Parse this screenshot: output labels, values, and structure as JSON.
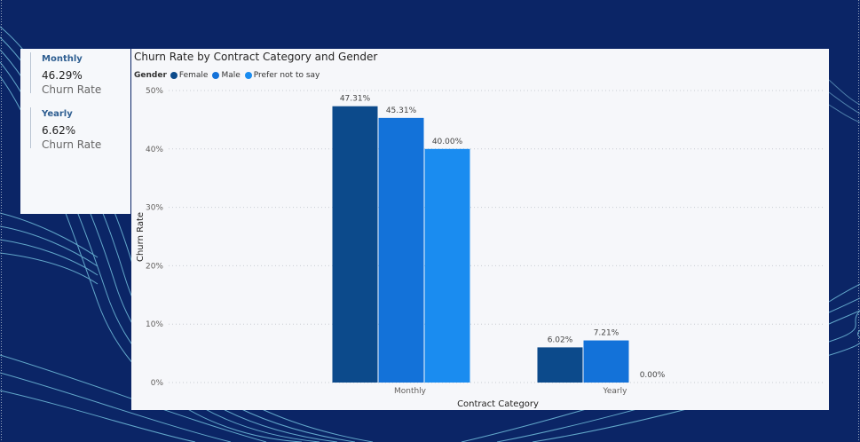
{
  "kpis": [
    {
      "title": "Monthly",
      "value": "46.29%",
      "subtitle": "Churn Rate"
    },
    {
      "title": "Yearly",
      "value": "6.62%",
      "subtitle": "Churn Rate"
    }
  ],
  "colors": {
    "background": "#0b2566",
    "female": "#0c4a8b",
    "male": "#1372d9",
    "prefer_not": "#1a8cf0"
  },
  "chart_data": {
    "type": "bar",
    "title": "Churn Rate by Contract Category and Gender",
    "xlabel": "Contract Category",
    "ylabel": "Churn Rate",
    "legend_title": "Gender",
    "categories": [
      "Monthly",
      "Yearly"
    ],
    "series": [
      {
        "name": "Female",
        "values": [
          47.31,
          6.02
        ],
        "labels": [
          "47.31%",
          "6.02%"
        ],
        "color": "#0c4a8b"
      },
      {
        "name": "Male",
        "values": [
          45.31,
          7.21
        ],
        "labels": [
          "45.31%",
          "7.21%"
        ],
        "color": "#1372d9"
      },
      {
        "name": "Prefer not to say",
        "values": [
          40.0,
          0.0
        ],
        "labels": [
          "40.00%",
          "0.00%"
        ],
        "color": "#1a8cf0"
      }
    ],
    "ylim": [
      0,
      50
    ],
    "yticks": [
      {
        "value": 0,
        "label": "0%"
      },
      {
        "value": 10,
        "label": "10%"
      },
      {
        "value": 20,
        "label": "20%"
      },
      {
        "value": 30,
        "label": "30%"
      },
      {
        "value": 40,
        "label": "40%"
      },
      {
        "value": 50,
        "label": "50%"
      }
    ],
    "grid": true,
    "legend_position": "top-left"
  }
}
